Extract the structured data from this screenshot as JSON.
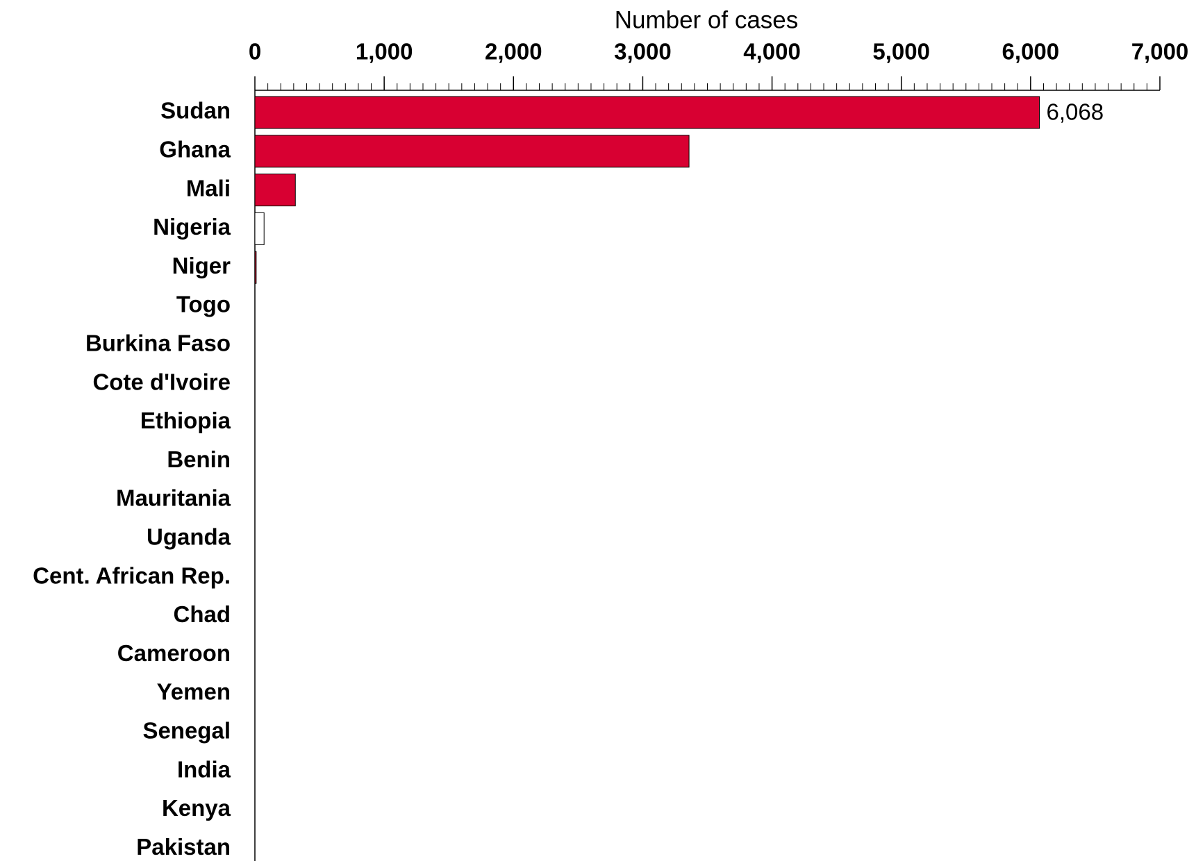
{
  "chart_data": {
    "type": "bar",
    "orientation": "horizontal",
    "x_label": "Number of cases",
    "categories": [
      "Sudan",
      "Ghana",
      "Mali",
      "Nigeria",
      "Niger",
      "Togo",
      "Burkina Faso",
      "Cote d'Ivoire",
      "Ethiopia",
      "Benin",
      "Mauritania",
      "Uganda",
      "Cent. African Rep.",
      "Chad",
      "Cameroon",
      "Yemen",
      "Senegal",
      "India",
      "Kenya",
      "Pakistan"
    ],
    "values": [
      6068,
      3358,
      313,
      71,
      10,
      0,
      0,
      0,
      0,
      0,
      0,
      0,
      0,
      0,
      0,
      0,
      0,
      0,
      0,
      0
    ],
    "value_labels": [
      "6,068",
      null,
      null,
      null,
      null,
      null,
      null,
      null,
      null,
      null,
      null,
      null,
      null,
      null,
      null,
      null,
      null,
      null,
      null,
      null
    ],
    "colors": [
      "#d80032",
      "#d80032",
      "#d80032",
      "#ffffff",
      "#d80032",
      "#d80032",
      "#d80032",
      "#d80032",
      "#d80032",
      "#d80032",
      "#d80032",
      "#d80032",
      "#d80032",
      "#d80032",
      "#d80032",
      "#d80032",
      "#d80032",
      "#d80032",
      "#d80032",
      "#d80032"
    ],
    "xlim": [
      0,
      7000
    ],
    "xticks": [
      0,
      {
        "value": 1000,
        "label": "1,000"
      },
      {
        "value": 2000,
        "label": "2,000"
      },
      {
        "value": 3000,
        "label": "3,000"
      },
      {
        "value": 4000,
        "label": "4,000"
      },
      {
        "value": 5000,
        "label": "5,000"
      },
      {
        "value": 6000,
        "label": "6,000"
      },
      {
        "value": 7000,
        "label": "7,000"
      }
    ],
    "minor_tick_step": 100,
    "axis_position": "top"
  }
}
